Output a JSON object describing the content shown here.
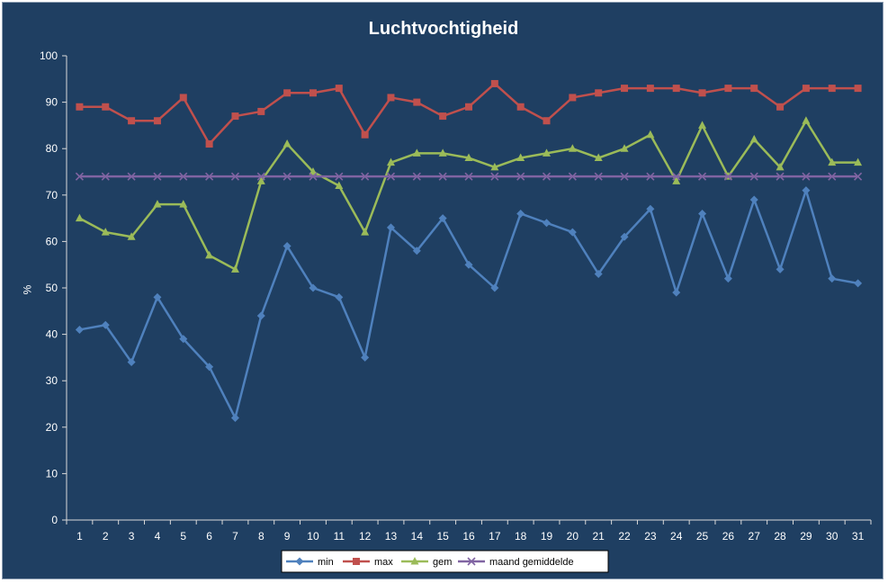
{
  "chart_data": {
    "type": "line",
    "title": "Luchtvochtigheid",
    "xlabel": "",
    "ylabel": "%",
    "ylim": [
      0,
      100
    ],
    "yticks": [
      0,
      10,
      20,
      30,
      40,
      50,
      60,
      70,
      80,
      90,
      100
    ],
    "x": [
      1,
      2,
      3,
      4,
      5,
      6,
      7,
      8,
      9,
      10,
      11,
      12,
      13,
      14,
      15,
      16,
      17,
      18,
      19,
      20,
      21,
      22,
      23,
      24,
      25,
      26,
      27,
      28,
      29,
      30,
      31
    ],
    "grid": false,
    "legend_position": "bottom",
    "series": [
      {
        "name": "min",
        "color": "#4f81bd",
        "marker": "diamond",
        "values": [
          41,
          42,
          34,
          48,
          39,
          33,
          22,
          44,
          59,
          50,
          48,
          35,
          63,
          58,
          65,
          55,
          50,
          66,
          64,
          62,
          53,
          61,
          67,
          49,
          66,
          52,
          69,
          54,
          71,
          52,
          51
        ]
      },
      {
        "name": "max",
        "color": "#c0504d",
        "marker": "square",
        "values": [
          89,
          89,
          86,
          86,
          91,
          81,
          87,
          88,
          92,
          92,
          93,
          83,
          91,
          90,
          87,
          89,
          94,
          89,
          86,
          91,
          92,
          93,
          93,
          93,
          92,
          93,
          93,
          89,
          93,
          93,
          93
        ]
      },
      {
        "name": "gem",
        "color": "#9bbb59",
        "marker": "triangle",
        "values": [
          65,
          62,
          61,
          68,
          68,
          57,
          54,
          73,
          81,
          75,
          72,
          62,
          77,
          79,
          79,
          78,
          76,
          78,
          79,
          80,
          78,
          80,
          83,
          73,
          85,
          74,
          82,
          76,
          86,
          77,
          77
        ]
      },
      {
        "name": "maand gemiddelde",
        "color": "#8064a2",
        "marker": "x",
        "values": [
          74,
          74,
          74,
          74,
          74,
          74,
          74,
          74,
          74,
          74,
          74,
          74,
          74,
          74,
          74,
          74,
          74,
          74,
          74,
          74,
          74,
          74,
          74,
          74,
          74,
          74,
          74,
          74,
          74,
          74,
          74
        ]
      }
    ]
  }
}
